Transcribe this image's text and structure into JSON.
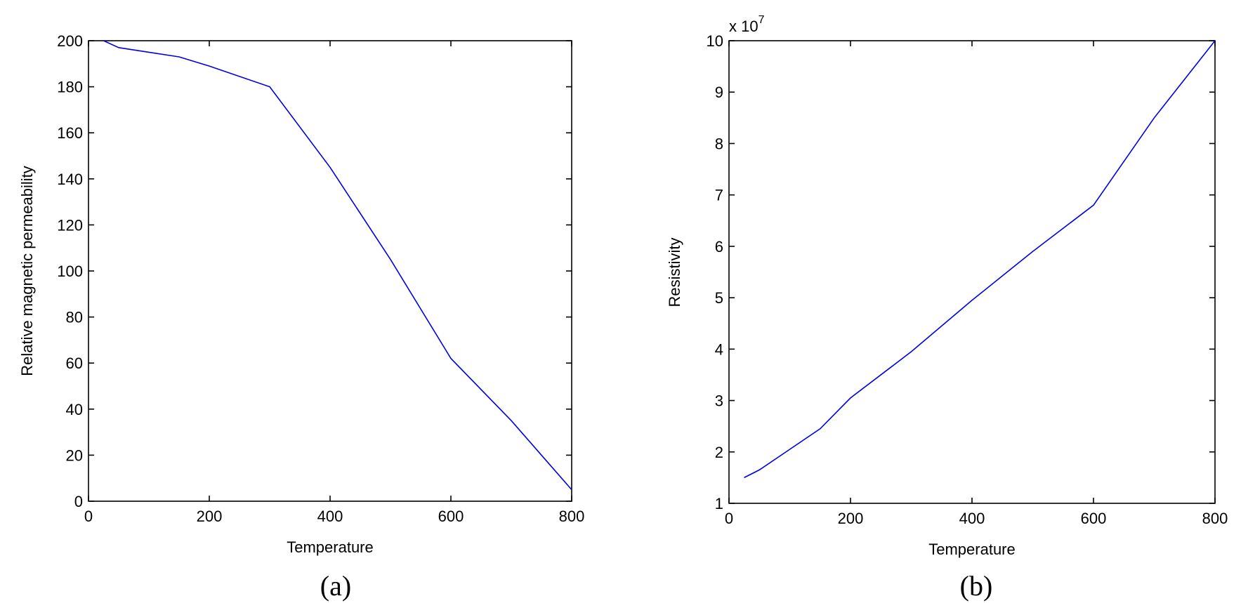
{
  "figure": {
    "panels": [
      {
        "caption": "(a)"
      },
      {
        "caption": "(b)"
      }
    ]
  },
  "chart_data": [
    {
      "type": "line",
      "title": "",
      "xlabel": "Temperature",
      "ylabel": "Relative magnetic permeability",
      "xlim": [
        0,
        800
      ],
      "ylim": [
        0,
        200
      ],
      "xticks": [
        0,
        200,
        400,
        600,
        800
      ],
      "yticks": [
        0,
        20,
        40,
        60,
        80,
        100,
        120,
        140,
        160,
        180,
        200
      ],
      "grid": false,
      "series": [
        {
          "color": "#0000e6",
          "x": [
            25,
            50,
            100,
            150,
            200,
            300,
            400,
            500,
            600,
            700,
            800
          ],
          "y": [
            200,
            197,
            195,
            193,
            189,
            180,
            145,
            105,
            62,
            35,
            5
          ]
        }
      ]
    },
    {
      "type": "line",
      "title": "",
      "xlabel": "Temperature",
      "ylabel": "Resistivity",
      "y_multiplier": "x 10",
      "y_multiplier_exponent": "7",
      "xlim": [
        0,
        800
      ],
      "ylim": [
        1,
        10
      ],
      "xticks": [
        0,
        200,
        400,
        600,
        800
      ],
      "yticks": [
        1,
        2,
        3,
        4,
        5,
        6,
        7,
        8,
        9,
        10
      ],
      "grid": false,
      "series": [
        {
          "color": "#0000e6",
          "x": [
            25,
            50,
            100,
            150,
            200,
            300,
            400,
            500,
            600,
            700,
            800
          ],
          "y": [
            1.5,
            1.65,
            2.05,
            2.45,
            3.05,
            3.95,
            4.95,
            5.9,
            6.8,
            8.5,
            10
          ]
        }
      ]
    }
  ]
}
